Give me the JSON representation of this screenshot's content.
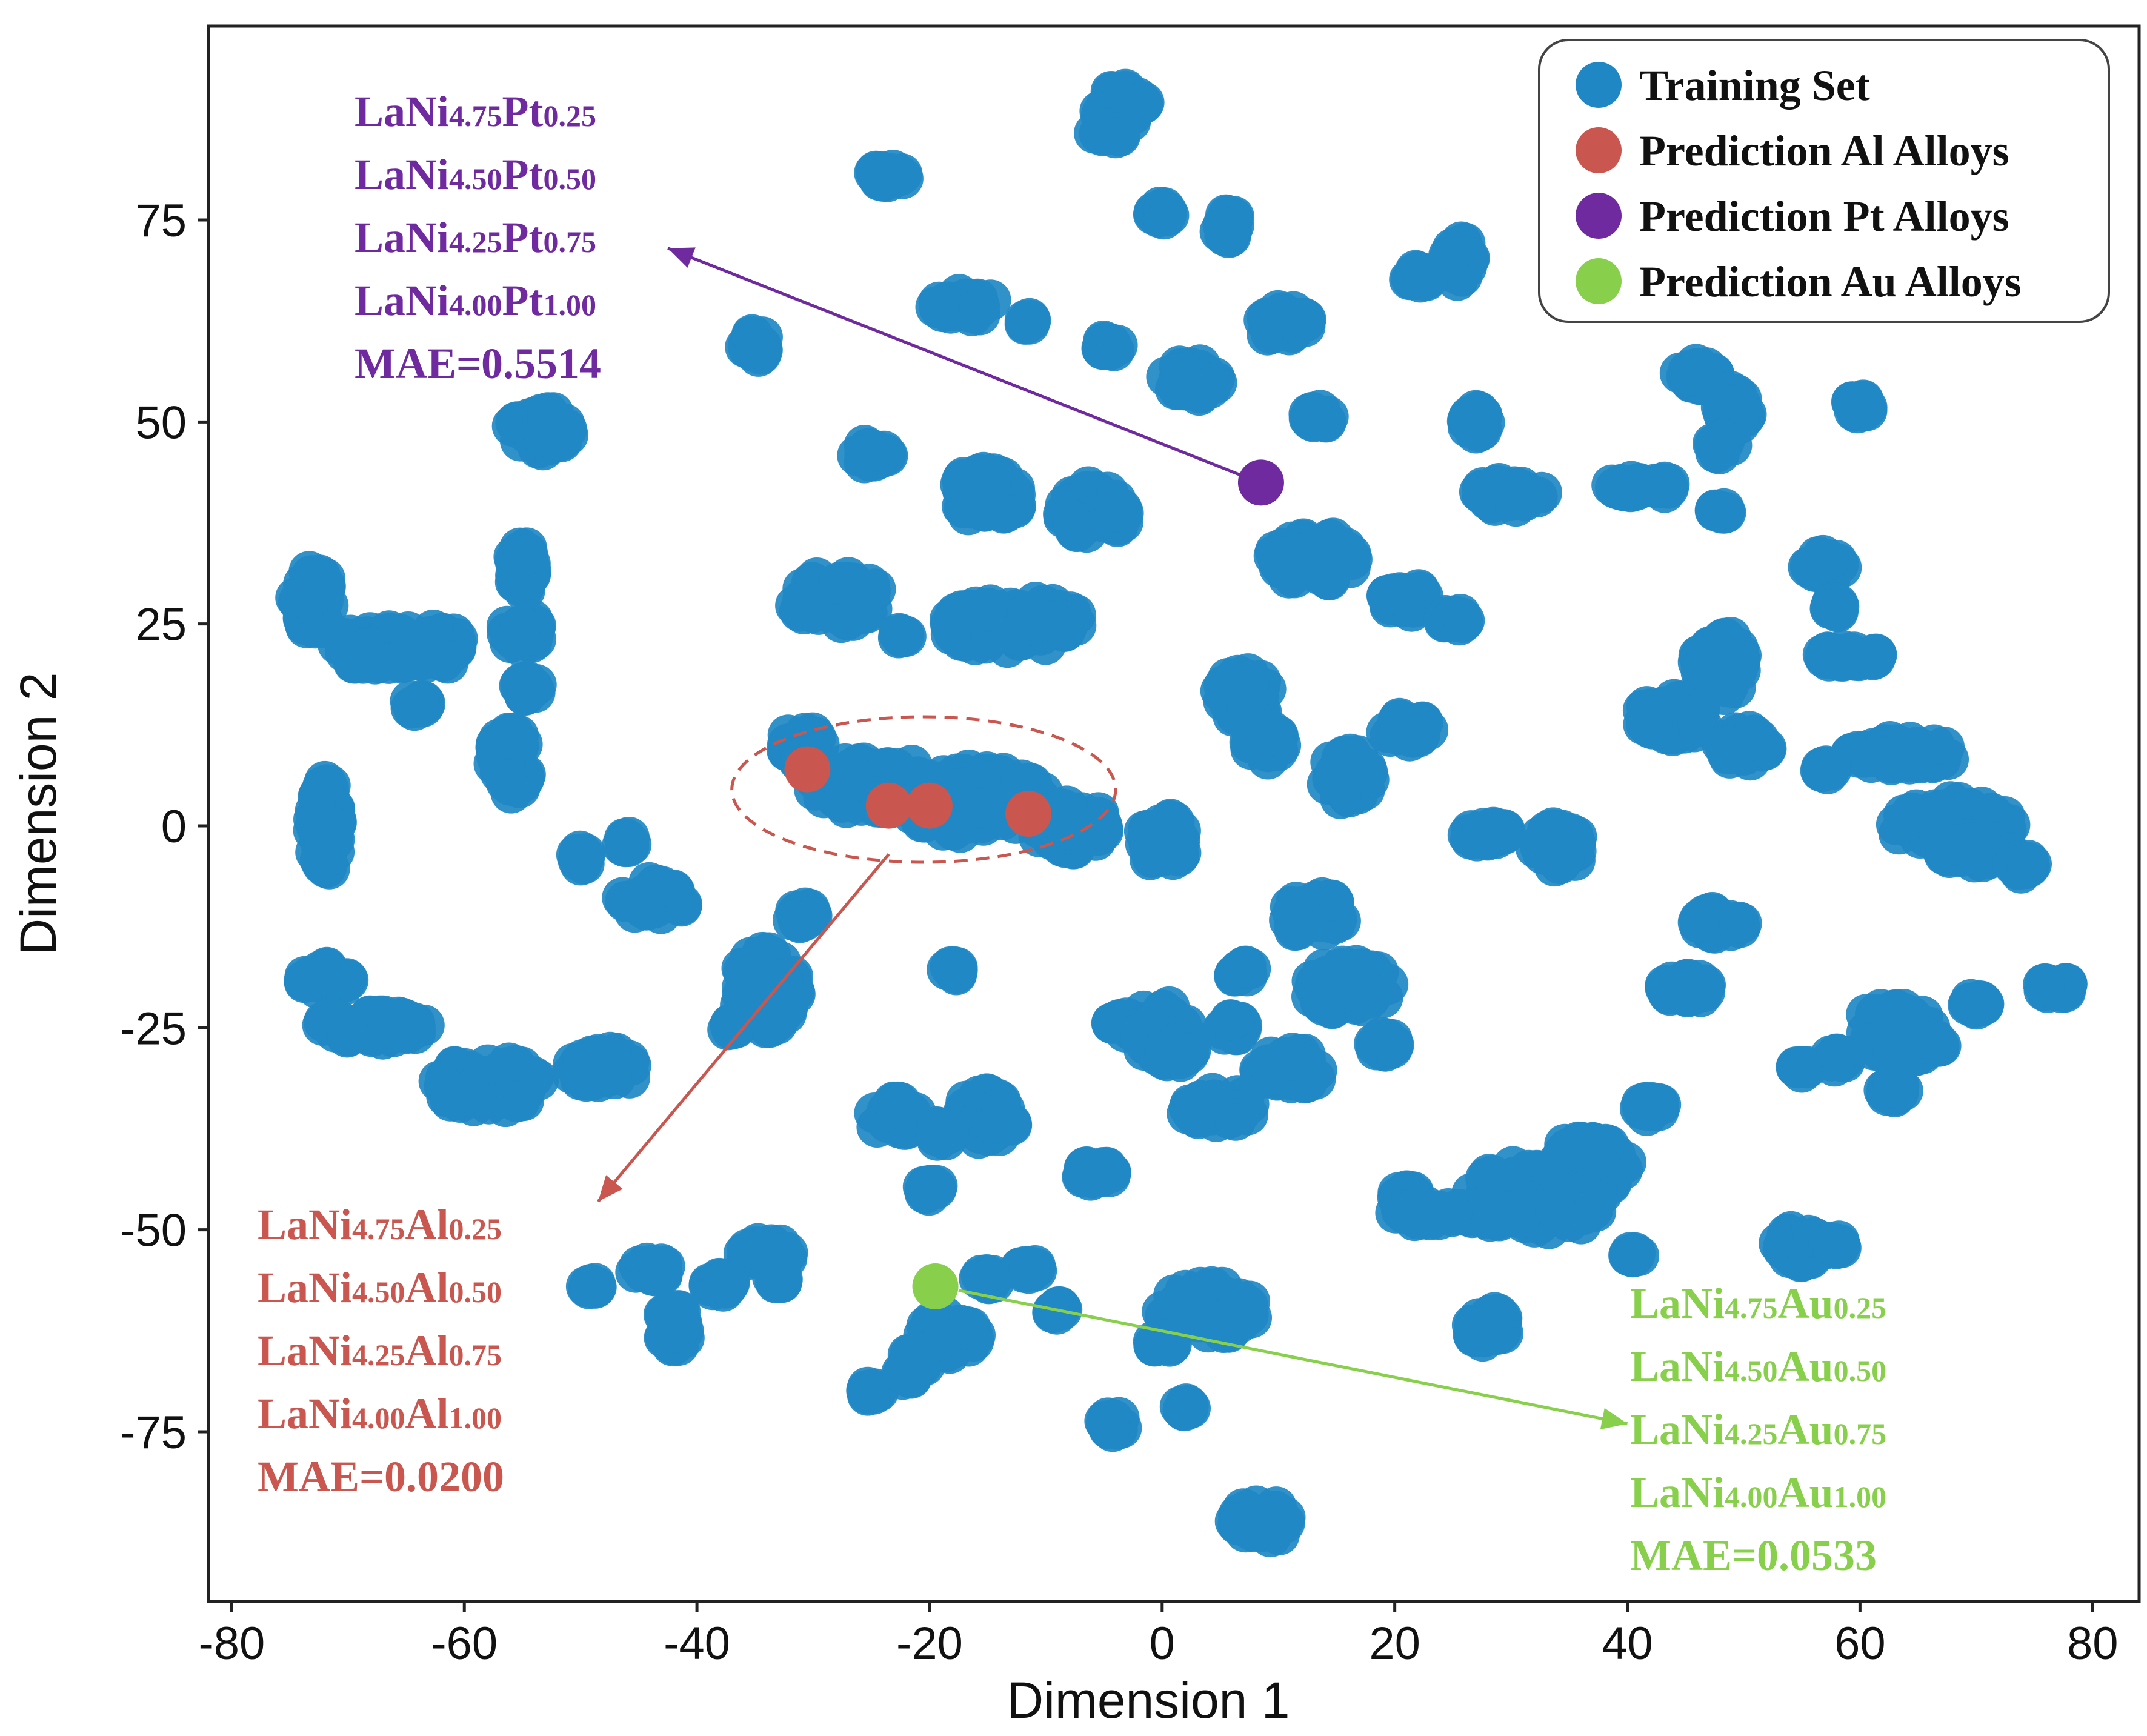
{
  "chart_data": {
    "type": "scatter",
    "xlabel": "Dimension 1",
    "ylabel": "Dimension 2",
    "xlim": [
      -82,
      84
    ],
    "ylim": [
      -96,
      99
    ],
    "xticks": [
      -80,
      -60,
      -40,
      -20,
      0,
      20,
      40,
      60,
      80
    ],
    "yticks": [
      -75,
      -50,
      -25,
      0,
      25,
      50,
      75
    ],
    "grid": false,
    "legend_position": "top-right",
    "series": [
      {
        "name": "Training Set",
        "color": "#1f88c4",
        "clusters": [
          [
            -3.5,
            89,
            2.2,
            2.2
          ],
          [
            -4.8,
            85.5,
            1.2,
            0.8
          ],
          [
            -23.5,
            80.5,
            1.5,
            0.8
          ],
          [
            0,
            75.8,
            0.8,
            0.8
          ],
          [
            5.5,
            74.5,
            0.8,
            1.8
          ],
          [
            -17,
            64.5,
            2.5,
            1.5
          ],
          [
            -11.5,
            62.5,
            0.5,
            0.5
          ],
          [
            -35,
            59.5,
            1,
            1.5
          ],
          [
            -4.5,
            59.5,
            0.8,
            0.8
          ],
          [
            2.5,
            55,
            2.2,
            2.2
          ],
          [
            10.5,
            62,
            2,
            2
          ],
          [
            13.5,
            50.5,
            1,
            1
          ],
          [
            -53.5,
            49,
            2.5,
            2.5
          ],
          [
            -25,
            46,
            1.5,
            1.2
          ],
          [
            -15,
            41,
            3,
            3
          ],
          [
            -6,
            39,
            3,
            3
          ],
          [
            13,
            33,
            3.5,
            3
          ],
          [
            -73,
            28,
            1.5,
            4
          ],
          [
            -65,
            22,
            6,
            3
          ],
          [
            -55,
            32,
            0.8,
            3
          ],
          [
            -55,
            24,
            1.5,
            2
          ],
          [
            -54.5,
            17,
            0.8,
            1
          ],
          [
            -28,
            28,
            4,
            3
          ],
          [
            -22.5,
            23.5,
            0.5,
            0.5
          ],
          [
            -13,
            25,
            6,
            3
          ],
          [
            -10,
            25,
            2,
            2
          ],
          [
            -64,
            15,
            0.8,
            0.8
          ],
          [
            -56,
            8,
            1.5,
            4
          ],
          [
            -72,
            0,
            1,
            6
          ],
          [
            -31,
            10,
            1.5,
            2
          ],
          [
            -25,
            5,
            5,
            3.5
          ],
          [
            -16,
            3,
            6,
            4
          ],
          [
            -8,
            0,
            3,
            3
          ],
          [
            0,
            -2,
            2,
            3
          ],
          [
            7,
            16,
            2,
            3
          ],
          [
            9,
            10,
            1.5,
            2
          ],
          [
            16,
            6,
            2,
            3
          ],
          [
            21,
            12,
            2,
            1.5
          ],
          [
            28,
            -1,
            2,
            1
          ],
          [
            34,
            -3,
            2,
            3
          ],
          [
            21,
            28,
            2,
            1.5
          ],
          [
            25,
            25.5,
            1,
            1
          ],
          [
            30,
            41,
            3,
            1.5
          ],
          [
            27,
            50,
            0.8,
            1.5
          ],
          [
            40,
            42,
            1.5,
            0.8
          ],
          [
            43,
            42,
            0.8,
            0.8
          ],
          [
            25.5,
            70,
            1,
            2.5
          ],
          [
            22,
            68,
            1,
            0.8
          ],
          [
            48,
            39,
            0.5,
            0.5
          ],
          [
            46,
            56,
            1.5,
            1.5
          ],
          [
            49,
            52,
            1.5,
            2.5
          ],
          [
            48,
            47,
            1,
            1
          ],
          [
            60,
            52,
            0.8,
            1
          ],
          [
            48,
            20,
            2,
            4
          ],
          [
            44,
            13,
            3,
            3
          ],
          [
            50,
            10,
            2,
            2
          ],
          [
            57,
            32,
            1.5,
            1.5
          ],
          [
            58,
            27,
            0.8,
            0.8
          ],
          [
            59,
            21,
            2.5,
            0.8
          ],
          [
            64,
            9,
            5,
            1.5
          ],
          [
            68,
            0,
            5,
            3
          ],
          [
            70,
            -3,
            3,
            1.5
          ],
          [
            74,
            -5,
            1,
            1
          ],
          [
            57,
            7,
            0.6,
            0.6
          ],
          [
            -50,
            -4,
            0.5,
            1
          ],
          [
            -46,
            -2,
            0.6,
            0.6
          ],
          [
            -44,
            -9,
            3,
            2
          ],
          [
            -34,
            -20,
            2.5,
            5
          ],
          [
            -37,
            -25,
            0.6,
            0.6
          ],
          [
            -68,
            -25,
            5,
            1.5
          ],
          [
            -58,
            -32,
            4.5,
            3
          ],
          [
            -48,
            -30,
            3,
            2
          ],
          [
            -72,
            -19,
            2,
            1.5
          ],
          [
            -18,
            -18,
            0.6,
            0.6
          ],
          [
            -4,
            -24,
            0.6,
            0.6
          ],
          [
            -23,
            -36,
            2,
            2
          ],
          [
            -15,
            -36,
            2.5,
            3
          ],
          [
            -19,
            -38,
            1,
            1
          ],
          [
            -20,
            -45,
            0.8,
            0.8
          ],
          [
            -5,
            -43,
            0.8,
            0.8
          ],
          [
            -0.5,
            -25,
            3,
            3
          ],
          [
            1,
            -28,
            1.5,
            1.5
          ],
          [
            6,
            -25,
            1,
            1
          ],
          [
            7,
            -18,
            1,
            1
          ],
          [
            5,
            -35,
            3,
            2
          ],
          [
            11,
            -30,
            3,
            2
          ],
          [
            16,
            -20,
            3.5,
            3
          ],
          [
            13,
            -11,
            2.5,
            2.5
          ],
          [
            19,
            -27,
            1,
            1
          ],
          [
            21,
            -46,
            1,
            1
          ],
          [
            32,
            -45,
            6,
            3
          ],
          [
            34,
            -48,
            4,
            2
          ],
          [
            37,
            -42,
            3,
            3
          ],
          [
            28,
            -48,
            2,
            1
          ],
          [
            28,
            -62,
            1.5,
            2
          ],
          [
            23,
            -48,
            3,
            1
          ],
          [
            36,
            -40,
            2,
            1
          ],
          [
            -31,
            -11,
            1,
            1
          ],
          [
            40.5,
            -53,
            0.6,
            0.6
          ],
          [
            42,
            -35,
            1,
            1
          ],
          [
            45,
            -20,
            2,
            1.5
          ],
          [
            48,
            -12,
            2,
            1.5
          ],
          [
            55,
            -52,
            2,
            2
          ],
          [
            58,
            -52,
            0.8,
            0.8
          ],
          [
            63,
            -25,
            3,
            3
          ],
          [
            58,
            -29,
            0.8,
            0.8
          ],
          [
            64,
            -27,
            3,
            2
          ],
          [
            70,
            -22,
            1,
            1
          ],
          [
            77,
            -20,
            1.5,
            0.8
          ],
          [
            55,
            -30,
            0.5,
            0.5
          ],
          [
            63,
            -33,
            1,
            1
          ],
          [
            -49,
            -57,
            0.5,
            0.5
          ],
          [
            -44,
            -55,
            1.5,
            1
          ],
          [
            -42,
            -62,
            1,
            3
          ],
          [
            -34,
            -53,
            2,
            1.5
          ],
          [
            -38,
            -57,
            1,
            1
          ],
          [
            -33,
            -56,
            0.6,
            0.6
          ],
          [
            -18.5,
            -63,
            2.5,
            2.5
          ],
          [
            -15,
            -56,
            0.8,
            0.8
          ],
          [
            -11.5,
            -55,
            0.8,
            0.8
          ],
          [
            -21,
            -66,
            1,
            1
          ],
          [
            -25,
            -70,
            0.6,
            0.6
          ],
          [
            4,
            -60,
            4,
            3
          ],
          [
            0,
            -64,
            0.8,
            0.8
          ],
          [
            2,
            -72,
            0.5,
            0.5
          ],
          [
            -4,
            -74,
            1,
            1
          ],
          [
            -6,
            -43,
            1,
            1
          ],
          [
            9,
            -86,
            3,
            2
          ],
          [
            -9,
            -60,
            0.6,
            0.6
          ],
          [
            -22,
            -68,
            0.6,
            0.6
          ]
        ]
      },
      {
        "name": "Prediction Al Alloys",
        "color": "#c9574f",
        "points": [
          [
            -30.5,
            7
          ],
          [
            -23.5,
            2.5
          ],
          [
            -20,
            2.5
          ],
          [
            -11.5,
            1.5
          ]
        ]
      },
      {
        "name": "Prediction Pt Alloys",
        "color": "#6e2a9e",
        "points": [
          [
            8.5,
            42.5
          ]
        ]
      },
      {
        "name": "Prediction Au Alloys",
        "color": "#88d04b",
        "points": [
          [
            -19.5,
            -57
          ]
        ]
      }
    ],
    "ellipse": {
      "cx": -20.5,
      "cy": 4.5,
      "rx": 16.5,
      "ry": 9,
      "color": "#c9574f"
    },
    "annotations": [
      {
        "color": "#6e2a9e",
        "arrow_from": [
          7.5,
          43
        ],
        "arrow_to": [
          -42.5,
          71.5
        ],
        "lines": [
          {
            "parts": [
              {
                "t": "LaNi",
                "sub": false
              },
              {
                "t": "4.75",
                "sub": true
              },
              {
                "t": "Pt",
                "sub": false
              },
              {
                "t": "0.25",
                "sub": true
              }
            ]
          },
          {
            "parts": [
              {
                "t": "LaNi",
                "sub": false
              },
              {
                "t": "4.50",
                "sub": true
              },
              {
                "t": "Pt",
                "sub": false
              },
              {
                "t": "0.50",
                "sub": true
              }
            ]
          },
          {
            "parts": [
              {
                "t": "LaNi",
                "sub": false
              },
              {
                "t": "4.25",
                "sub": true
              },
              {
                "t": "Pt",
                "sub": false
              },
              {
                "t": "0.75",
                "sub": true
              }
            ]
          },
          {
            "parts": [
              {
                "t": "LaNi",
                "sub": false
              },
              {
                "t": "4.00",
                "sub": true
              },
              {
                "t": "Pt",
                "sub": false
              },
              {
                "t": "1.00",
                "sub": true
              }
            ]
          },
          {
            "parts": [
              {
                "t": "MAE=0.5514",
                "sub": false
              }
            ]
          }
        ]
      },
      {
        "color": "#c9574f",
        "arrow_from": [
          -23.5,
          -3.5
        ],
        "arrow_to": [
          -48.5,
          -46.5
        ],
        "lines": [
          {
            "parts": [
              {
                "t": "LaNi",
                "sub": false
              },
              {
                "t": "4.75",
                "sub": true
              },
              {
                "t": "Al",
                "sub": false
              },
              {
                "t": "0.25",
                "sub": true
              }
            ]
          },
          {
            "parts": [
              {
                "t": "LaNi",
                "sub": false
              },
              {
                "t": "4.50",
                "sub": true
              },
              {
                "t": "Al",
                "sub": false
              },
              {
                "t": "0.50",
                "sub": true
              }
            ]
          },
          {
            "parts": [
              {
                "t": "LaNi",
                "sub": false
              },
              {
                "t": "4.25",
                "sub": true
              },
              {
                "t": "Al",
                "sub": false
              },
              {
                "t": "0.75",
                "sub": true
              }
            ]
          },
          {
            "parts": [
              {
                "t": "LaNi",
                "sub": false
              },
              {
                "t": "4.00",
                "sub": true
              },
              {
                "t": "Al",
                "sub": false
              },
              {
                "t": "1.00",
                "sub": true
              }
            ]
          },
          {
            "parts": [
              {
                "t": "MAE=0.0200",
                "sub": false
              }
            ]
          }
        ]
      },
      {
        "color": "#88d04b",
        "arrow_from": [
          -17.5,
          -57.5
        ],
        "arrow_to": [
          40,
          -74
        ],
        "lines": [
          {
            "parts": [
              {
                "t": "LaNi",
                "sub": false
              },
              {
                "t": "4.75",
                "sub": true
              },
              {
                "t": "Au",
                "sub": false
              },
              {
                "t": "0.25",
                "sub": true
              }
            ]
          },
          {
            "parts": [
              {
                "t": "LaNi",
                "sub": false
              },
              {
                "t": "4.50",
                "sub": true
              },
              {
                "t": "Au",
                "sub": false
              },
              {
                "t": "0.50",
                "sub": true
              }
            ]
          },
          {
            "parts": [
              {
                "t": "LaNi",
                "sub": false
              },
              {
                "t": "4.25",
                "sub": true
              },
              {
                "t": "Au",
                "sub": false
              },
              {
                "t": "0.75",
                "sub": true
              }
            ]
          },
          {
            "parts": [
              {
                "t": "LaNi",
                "sub": false
              },
              {
                "t": "4.00",
                "sub": true
              },
              {
                "t": "Au",
                "sub": false
              },
              {
                "t": "1.00",
                "sub": true
              }
            ]
          },
          {
            "parts": [
              {
                "t": "MAE=0.0533",
                "sub": false
              }
            ]
          }
        ]
      }
    ]
  }
}
